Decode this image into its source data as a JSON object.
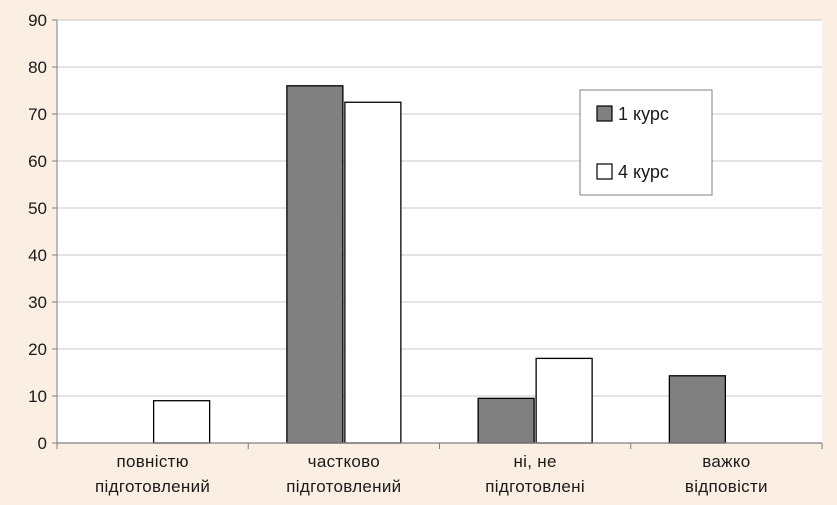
{
  "chart_data": {
    "type": "bar",
    "title": "",
    "xlabel": "",
    "ylabel": "",
    "ylim": [
      0,
      90
    ],
    "yticks": [
      0,
      10,
      20,
      30,
      40,
      50,
      60,
      70,
      80,
      90
    ],
    "grid": true,
    "legend_position": "top-right",
    "categories": [
      [
        "повністю",
        "підготовлений"
      ],
      [
        "частково",
        "підготовлений"
      ],
      [
        "ні, не",
        "підготовлені"
      ],
      [
        "важко",
        "відповісти"
      ]
    ],
    "series": [
      {
        "name": "1 курс",
        "color": "#808080",
        "values": [
          0,
          76,
          9.5,
          14.3
        ]
      },
      {
        "name": "4 курс",
        "color": "#ffffff",
        "values": [
          9,
          72.5,
          18,
          0
        ]
      }
    ],
    "colors": {
      "background": "#fbeee2",
      "plot_background": "#ffffff",
      "gridline": "#c8c8c8",
      "axis": "#808080",
      "bar_stroke": "#000000"
    }
  }
}
